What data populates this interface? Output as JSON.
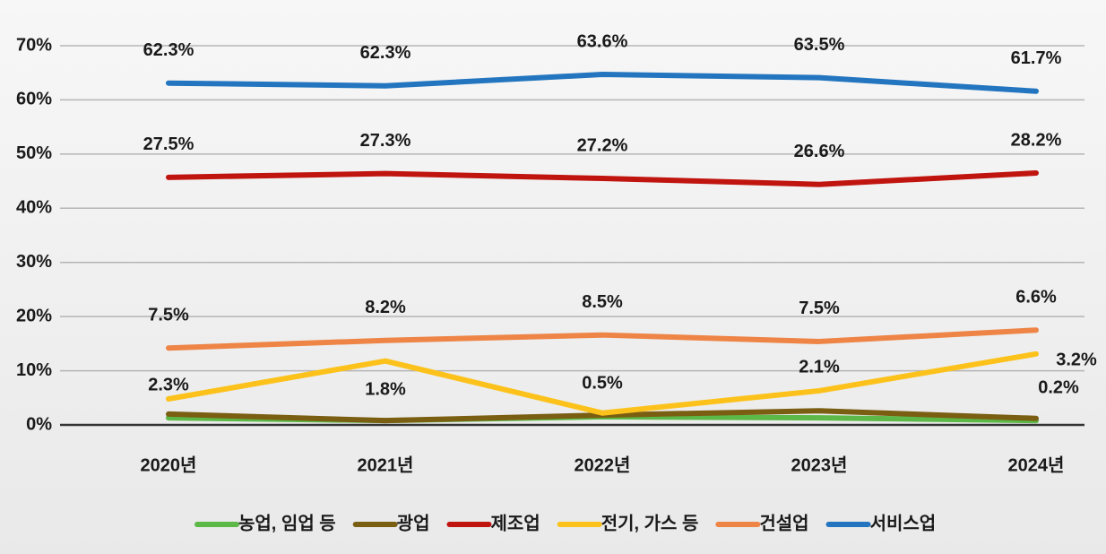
{
  "chart_data": {
    "type": "line",
    "categories": [
      "2020년",
      "2021년",
      "2022년",
      "2023년",
      "2024년"
    ],
    "ylim": [
      0,
      70
    ],
    "yticks": [
      {
        "value": 0,
        "label": "0%"
      },
      {
        "value": 10,
        "label": "10%"
      },
      {
        "value": 20,
        "label": "20%"
      },
      {
        "value": 30,
        "label": "30%"
      },
      {
        "value": 40,
        "label": "40%"
      },
      {
        "value": 50,
        "label": "50%"
      },
      {
        "value": 60,
        "label": "60%"
      },
      {
        "value": 70,
        "label": "70%"
      }
    ],
    "grid": true,
    "legend": "bottom",
    "series": [
      {
        "name": "농업, 임업 등",
        "color": "#5cb847",
        "values": [
          1.3,
          0.8,
          1.5,
          1.3,
          0.8
        ],
        "data_labels": [
          null,
          null,
          null,
          null,
          "0.2%"
        ]
      },
      {
        "name": "광업",
        "color": "#7a5e12",
        "values": [
          2.0,
          0.8,
          1.8,
          2.6,
          1.2
        ]
      },
      {
        "name": "제조업",
        "color": "#c0140f",
        "values": [
          45.7,
          46.4,
          45.5,
          44.4,
          46.5
        ],
        "data_labels": [
          "27.5%",
          "27.3%",
          "27.2%",
          "26.6%",
          "28.2%"
        ]
      },
      {
        "name": "전기, 가스 등",
        "color": "#fcc21b",
        "values": [
          4.8,
          11.8,
          2.2,
          6.3,
          13.1
        ],
        "data_labels": [
          "2.3%",
          "1.8%",
          "0.5%",
          "2.1%",
          "3.2%"
        ]
      },
      {
        "name": "건설업",
        "color": "#ee8445",
        "values": [
          14.2,
          15.6,
          16.6,
          15.4,
          17.5
        ],
        "data_labels": [
          "7.5%",
          "8.2%",
          "8.5%",
          "7.5%",
          "6.6%"
        ]
      },
      {
        "name": "서비스업",
        "color": "#2375bf",
        "values": [
          63.1,
          62.6,
          64.7,
          64.1,
          61.6
        ],
        "data_labels": [
          "62.3%",
          "62.3%",
          "63.6%",
          "63.5%",
          "61.7%"
        ]
      }
    ]
  }
}
